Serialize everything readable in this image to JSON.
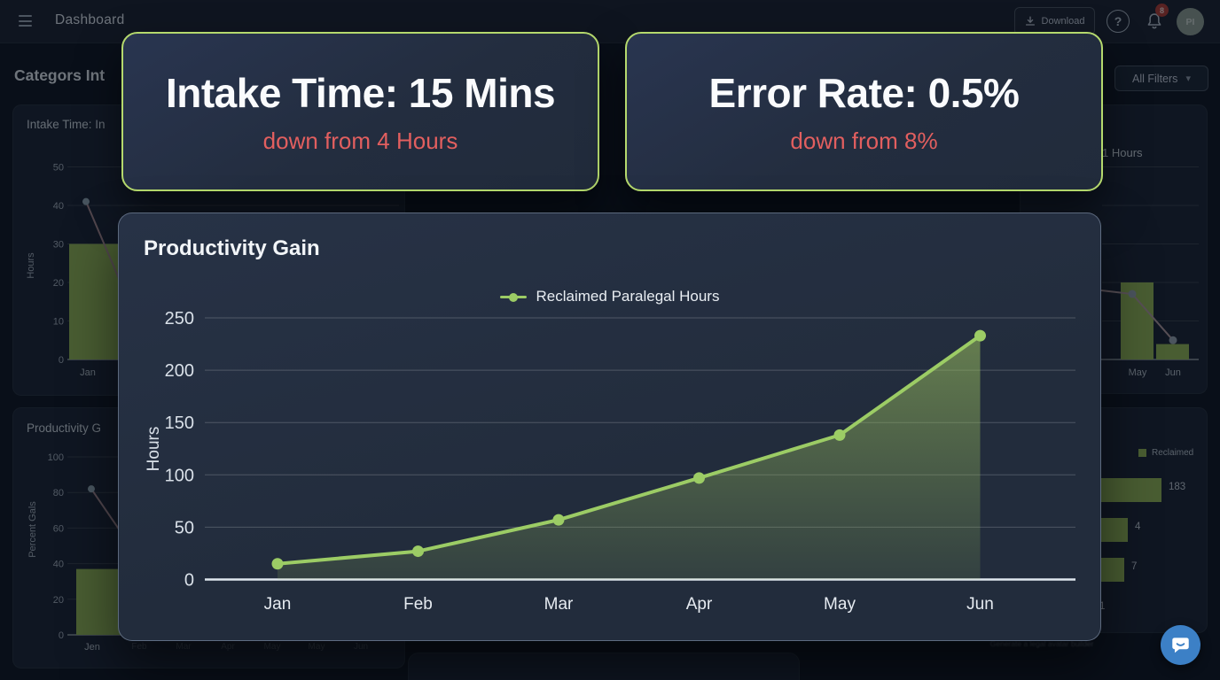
{
  "topbar": {
    "title": "Dashboard",
    "download_label": "Download",
    "help_glyph": "?",
    "notification_count": "8",
    "avatar_initials": "PI"
  },
  "page": {
    "heading": "Categors Int",
    "filters_label": "All Filters",
    "filters_chevron": "▾",
    "footer_caption": "Generate a legal avatar builder"
  },
  "modal": {
    "stat_cards": [
      {
        "title": "Intake Time: 15 Mins",
        "subtitle": "down from 4 Hours"
      },
      {
        "title": "Error Rate: 0.5%",
        "subtitle": "down from 8%"
      }
    ],
    "chart_title": "Productivity Gain",
    "legend_label": "Reclaimed Paralegal Hours"
  },
  "colors": {
    "accent_green": "#9ccc65",
    "bar_green": "#93b654",
    "card_border_green": "#b5d96d",
    "alert_red": "#e25f5f",
    "chat_blue": "#3c80c6",
    "badge_red": "#b23b33"
  },
  "chart_data": [
    {
      "id": "productivity-gain",
      "type": "line",
      "title": "Productivity Gain",
      "categories": [
        "Jan",
        "Feb",
        "Mar",
        "Apr",
        "May",
        "Jun"
      ],
      "series": [
        {
          "name": "Reclaimed Paralegal Hours",
          "values": [
            15,
            27,
            57,
            97,
            138,
            233
          ]
        }
      ],
      "xlabel": "",
      "ylabel": "Hours",
      "ylim": [
        0,
        250
      ],
      "yticks": [
        0,
        50,
        100,
        150,
        200,
        250
      ],
      "grid": true,
      "area_fill": true,
      "legend_position": "top-center",
      "line_color": "#9ccc65"
    },
    {
      "id": "intake-time-mini",
      "type": "bar+line",
      "title": "Intake Time: In",
      "ylabel": "Hours",
      "ylim": [
        0,
        50
      ],
      "yticks": [
        0,
        10,
        20,
        30,
        40,
        50
      ],
      "categories": [
        "Jan"
      ],
      "bar_series": {
        "values": [
          30
        ]
      },
      "line_series": {
        "visible_points": [
          41,
          20
        ]
      },
      "bar_color": "#93b654",
      "line_color": "#a5888f"
    },
    {
      "id": "productivity-mini",
      "type": "bar+line",
      "title": "Productivity G",
      "ylabel": "Percent Gals",
      "ylim": [
        0,
        100
      ],
      "yticks": [
        0,
        20,
        40,
        60,
        80,
        100
      ],
      "categories": [
        "Jen"
      ],
      "faint_categories": [
        "Feb",
        "Mar",
        "Apr",
        "May",
        "May",
        "Jun"
      ],
      "bar_series": {
        "values": [
          37
        ]
      },
      "line_series": {
        "visible_points": [
          82,
          58
        ]
      },
      "bar_color": "#93b654",
      "line_color": "#a5888f"
    },
    {
      "id": "right-hours-mini",
      "type": "bar+line",
      "title": "1 Hours",
      "ylim": [
        0,
        50
      ],
      "categories": [
        "May",
        "Jun"
      ],
      "bar_series": {
        "values": [
          20,
          4
        ]
      },
      "line_series": {
        "visible_points": [
          18,
          17,
          5
        ]
      },
      "bar_color": "#93b654",
      "line_color": "#b0989e"
    },
    {
      "id": "reclaimed-breakdown",
      "type": "horizontal-bar",
      "legend": "Reclaimed",
      "values": [
        183,
        4,
        7,
        1
      ],
      "bar_color": "#93b654"
    }
  ]
}
